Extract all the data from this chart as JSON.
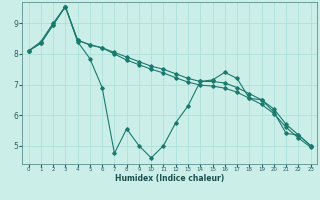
{
  "title": "",
  "xlabel": "Humidex (Indice chaleur)",
  "bg_color": "#cceee8",
  "line_color": "#1a7a6e",
  "grid_color": "#a8ddd8",
  "xlim": [
    -0.5,
    23.5
  ],
  "ylim": [
    4.4,
    9.7
  ],
  "yticks": [
    5,
    6,
    7,
    8,
    9
  ],
  "xticks": [
    0,
    1,
    2,
    3,
    4,
    5,
    6,
    7,
    8,
    9,
    10,
    11,
    12,
    13,
    14,
    15,
    16,
    17,
    18,
    19,
    20,
    21,
    22,
    23
  ],
  "line1_x": [
    0,
    1,
    2,
    3,
    4,
    5,
    6,
    7,
    8,
    9,
    10,
    11,
    12,
    13,
    14,
    15,
    16,
    17,
    18,
    19,
    20,
    21,
    22,
    23
  ],
  "line1_y": [
    8.1,
    8.4,
    9.0,
    9.55,
    8.4,
    7.85,
    6.9,
    4.75,
    5.55,
    5.0,
    4.6,
    5.0,
    5.75,
    6.3,
    7.1,
    7.15,
    7.4,
    7.2,
    6.55,
    6.5,
    6.1,
    5.4,
    5.35,
    5.0
  ],
  "line2_x": [
    0,
    1,
    2,
    3,
    4,
    5,
    6,
    7,
    8,
    9,
    10,
    11,
    12,
    13,
    14,
    15,
    16,
    17,
    18,
    19,
    20,
    21,
    22,
    23
  ],
  "line2_y": [
    8.1,
    8.35,
    8.95,
    9.55,
    8.45,
    8.3,
    8.2,
    8.05,
    7.9,
    7.75,
    7.6,
    7.5,
    7.35,
    7.2,
    7.1,
    7.1,
    7.05,
    6.9,
    6.7,
    6.5,
    6.2,
    5.7,
    5.35,
    5.0
  ],
  "line3_x": [
    0,
    1,
    2,
    3,
    4,
    5,
    6,
    7,
    8,
    9,
    10,
    11,
    12,
    13,
    14,
    15,
    16,
    17,
    18,
    19,
    20,
    21,
    22,
    23
  ],
  "line3_y": [
    8.1,
    8.35,
    8.95,
    9.55,
    8.45,
    8.3,
    8.2,
    8.0,
    7.8,
    7.65,
    7.5,
    7.38,
    7.22,
    7.08,
    6.98,
    6.95,
    6.88,
    6.75,
    6.55,
    6.35,
    6.05,
    5.6,
    5.25,
    4.95
  ]
}
